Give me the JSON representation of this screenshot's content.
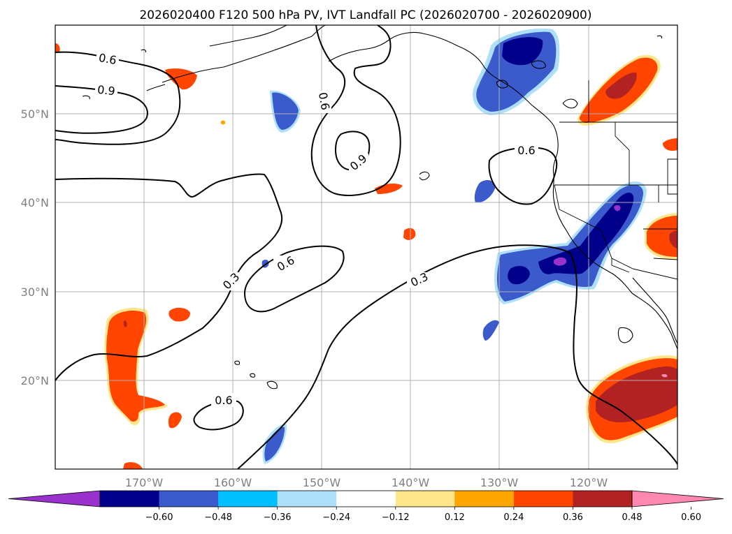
{
  "chart_data": {
    "type": "heatmap",
    "title": "2026020400 F120 500 hPa PV, IVT Landfall PC (2026020700 - 2026020900)",
    "map": {
      "projection": "PlateCarree",
      "lon_range": [
        -180,
        -110
      ],
      "lat_range": [
        10,
        60
      ],
      "lon_ticks": [
        -170,
        -160,
        -150,
        -140,
        -130,
        -120
      ],
      "lon_tick_labels": [
        "170°W",
        "160°W",
        "150°W",
        "140°W",
        "130°W",
        "120°W"
      ],
      "lat_ticks": [
        20,
        30,
        40,
        50
      ],
      "lat_tick_labels": [
        "20°N",
        "30°N",
        "40°N",
        "50°N"
      ],
      "grid": true
    },
    "colorbar": {
      "orientation": "horizontal",
      "extend": "both",
      "boundaries": [
        -0.72,
        -0.6,
        -0.48,
        -0.36,
        -0.24,
        -0.12,
        0.12,
        0.24,
        0.36,
        0.48,
        0.6,
        0.72
      ],
      "tick_values": [
        -0.6,
        -0.48,
        -0.36,
        -0.24,
        -0.12,
        0.12,
        0.24,
        0.36,
        0.48,
        0.6
      ],
      "tick_labels": [
        "−0.60",
        "−0.48",
        "−0.36",
        "−0.24",
        "−0.12",
        "0.12",
        "0.24",
        "0.36",
        "0.48",
        "0.60"
      ],
      "colors": [
        "#9932cc",
        "#00008b",
        "#3b5bcc",
        "#00bfff",
        "#aee0fa",
        "#ffffff",
        "#ffe68a",
        "#ffa500",
        "#ff4500",
        "#b22222",
        "#ff88b0"
      ]
    },
    "contour_levels": [
      0.3,
      0.6,
      0.9
    ],
    "contour_labels": [
      {
        "text": "0.6",
        "lon": -174.2,
        "lat": 56.2
      },
      {
        "text": "0.9",
        "lon": -174.2,
        "lat": 52.6
      },
      {
        "text": "0.6",
        "lon": -149.0,
        "lat": 51.5
      },
      {
        "text": "0.9",
        "lon": -147.0,
        "lat": 44.5
      },
      {
        "text": "0.6",
        "lon": -126.6,
        "lat": 45.8
      },
      {
        "text": "0.3",
        "lon": -160.5,
        "lat": 31.2
      },
      {
        "text": "0.6",
        "lon": -156.7,
        "lat": 33.3
      },
      {
        "text": "0.3",
        "lon": -140.9,
        "lat": 31.5
      },
      {
        "text": "0.6",
        "lon": -161.0,
        "lat": 17.5
      }
    ],
    "filled_regions": [
      {
        "name": "gulf-of-alaska-negative",
        "level": -0.6,
        "lon": -125,
        "lat": 54
      },
      {
        "name": "california-negative",
        "level": -0.6,
        "lon": -123,
        "lat": 34
      },
      {
        "name": "hawaii-west-positive",
        "level": 0.36,
        "lon": -173,
        "lat": 22
      },
      {
        "name": "baja-positive",
        "level": 0.48,
        "lon": -115,
        "lat": 18
      },
      {
        "name": "british-columbia-interior-positive",
        "level": 0.48,
        "lon": -117,
        "lat": 52
      },
      {
        "name": "great-basin-positive",
        "level": 0.36,
        "lon": -112,
        "lat": 36
      }
    ]
  }
}
